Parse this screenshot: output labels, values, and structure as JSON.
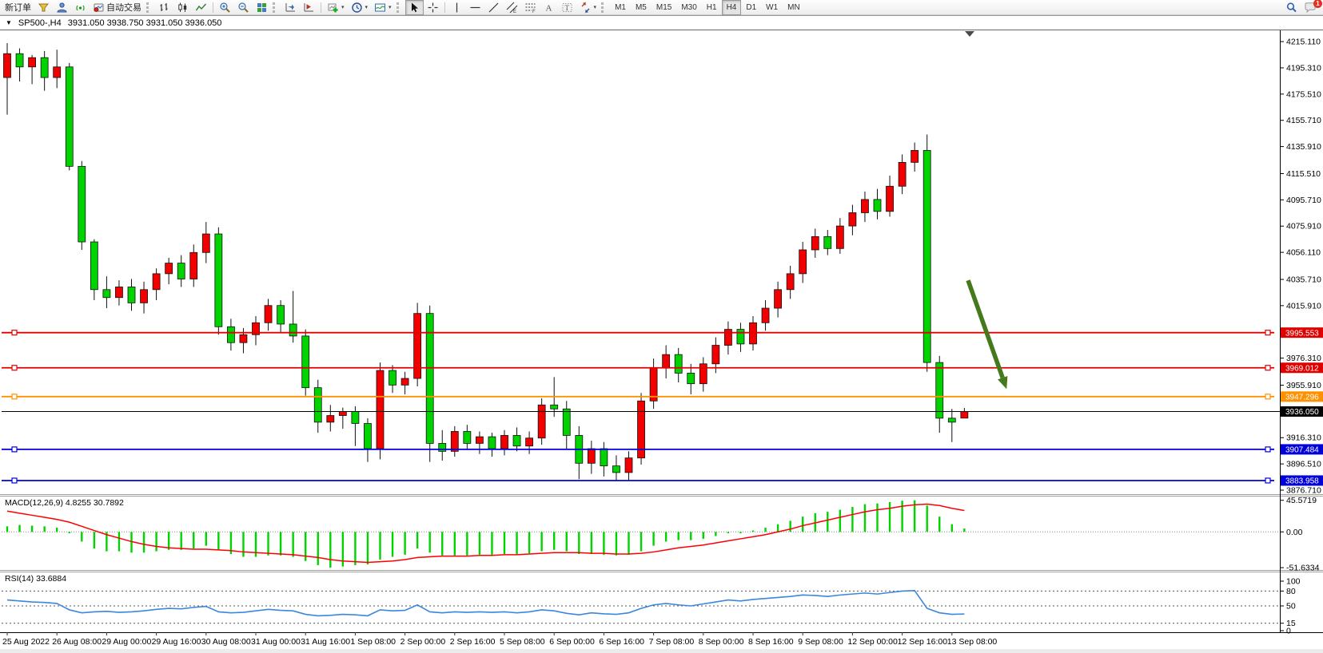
{
  "toolbar": {
    "new_order": "新订单",
    "auto_trading": "自动交易",
    "timeframes": [
      "M1",
      "M5",
      "M15",
      "M30",
      "H1",
      "H4",
      "D1",
      "W1",
      "MN"
    ],
    "active_timeframe": "H4",
    "notification_badge": "1"
  },
  "chart_title": {
    "symbol_period": "SP500-,H4",
    "ohlc": "3931.050 3938.750 3931.050 3936.050"
  },
  "chart_data": [
    {
      "type": "candlestick",
      "symbol": "SP500-",
      "period": "H4",
      "up_color": "#f20000",
      "down_color": "#00d300",
      "price_range": [
        3873.7,
        4223.6
      ],
      "price_ticks": [
        "4215.110",
        "4195.310",
        "4175.510",
        "4155.710",
        "4135.910",
        "4115.510",
        "4095.710",
        "4075.910",
        "4056.110",
        "4035.710",
        "4015.910",
        "3976.310",
        "3955.910",
        "3916.310",
        "3896.510",
        "3876.710"
      ],
      "x_labels": [
        "25 Aug 2022",
        "26 Aug 08:00",
        "29 Aug 00:00",
        "29 Aug 16:00",
        "30 Aug 08:00",
        "31 Aug 00:00",
        "31 Aug 16:00",
        "1 Sep 08:00",
        "2 Sep 00:00",
        "2 Sep 16:00",
        "5 Sep 08:00",
        "6 Sep 00:00",
        "6 Sep 16:00",
        "7 Sep 08:00",
        "8 Sep 00:00",
        "8 Sep 16:00",
        "9 Sep 08:00",
        "12 Sep 00:00",
        "12 Sep 16:00",
        "13 Sep 08:00"
      ],
      "x_label_every": 4,
      "candles": [
        [
          4188,
          4214,
          4160,
          4206
        ],
        [
          4206,
          4210,
          4185,
          4196
        ],
        [
          4196,
          4205,
          4183,
          4203
        ],
        [
          4203,
          4208,
          4178,
          4188
        ],
        [
          4188,
          4209,
          4180,
          4196
        ],
        [
          4196,
          4199,
          4118,
          4121
        ],
        [
          4121,
          4125,
          4058,
          4064
        ],
        [
          4064,
          4066,
          4020,
          4028
        ],
        [
          4028,
          4038,
          4014,
          4022
        ],
        [
          4022,
          4035,
          4016,
          4030
        ],
        [
          4030,
          4036,
          4012,
          4018
        ],
        [
          4018,
          4034,
          4010,
          4028
        ],
        [
          4028,
          4044,
          4020,
          4040
        ],
        [
          4040,
          4052,
          4032,
          4048
        ],
        [
          4048,
          4054,
          4030,
          4036
        ],
        [
          4036,
          4062,
          4030,
          4056
        ],
        [
          4056,
          4079,
          4048,
          4070
        ],
        [
          4070,
          4075,
          3994,
          4000
        ],
        [
          4000,
          4006,
          3982,
          3988
        ],
        [
          3988,
          3999,
          3980,
          3994
        ],
        [
          3994,
          4008,
          3986,
          4003
        ],
        [
          4003,
          4021,
          3997,
          4016
        ],
        [
          4016,
          4020,
          3996,
          4002
        ],
        [
          4002,
          4027,
          3988,
          3993
        ],
        [
          3993,
          3998,
          3948,
          3954
        ],
        [
          3954,
          3960,
          3920,
          3928
        ],
        [
          3928,
          3941,
          3921,
          3933
        ],
        [
          3933,
          3939,
          3923,
          3936
        ],
        [
          3936,
          3940,
          3910,
          3927
        ],
        [
          3927,
          3931,
          3898,
          3908
        ],
        [
          3908,
          3973,
          3900,
          3967
        ],
        [
          3967,
          3971,
          3950,
          3956
        ],
        [
          3956,
          3966,
          3949,
          3961
        ],
        [
          3961,
          4018,
          3955,
          4010
        ],
        [
          4010,
          4016,
          3898,
          3912
        ],
        [
          3912,
          3922,
          3899,
          3906
        ],
        [
          3906,
          3925,
          3902,
          3921
        ],
        [
          3921,
          3926,
          3907,
          3912
        ],
        [
          3912,
          3921,
          3904,
          3917
        ],
        [
          3917,
          3920,
          3902,
          3908
        ],
        [
          3908,
          3922,
          3903,
          3918
        ],
        [
          3918,
          3924,
          3906,
          3910
        ],
        [
          3910,
          3921,
          3904,
          3916
        ],
        [
          3916,
          3946,
          3911,
          3941
        ],
        [
          3941,
          3962,
          3932,
          3938
        ],
        [
          3938,
          3944,
          3908,
          3918
        ],
        [
          3918,
          3925,
          3885,
          3897
        ],
        [
          3897,
          3914,
          3889,
          3908
        ],
        [
          3908,
          3913,
          3887,
          3895
        ],
        [
          3895,
          3903,
          3884,
          3890
        ],
        [
          3890,
          3906,
          3884,
          3901
        ],
        [
          3901,
          3950,
          3896,
          3944
        ],
        [
          3944,
          3976,
          3938,
          3969
        ],
        [
          3969,
          3986,
          3961,
          3979
        ],
        [
          3979,
          3984,
          3958,
          3965
        ],
        [
          3965,
          3972,
          3949,
          3957
        ],
        [
          3957,
          3977,
          3951,
          3972
        ],
        [
          3972,
          3992,
          3965,
          3986
        ],
        [
          3986,
          4004,
          3979,
          3998
        ],
        [
          3998,
          4003,
          3981,
          3987
        ],
        [
          3987,
          4008,
          3982,
          4003
        ],
        [
          4003,
          4020,
          3997,
          4014
        ],
        [
          4014,
          4034,
          4007,
          4028
        ],
        [
          4028,
          4046,
          4021,
          4040
        ],
        [
          4040,
          4064,
          4033,
          4058
        ],
        [
          4058,
          4074,
          4052,
          4068
        ],
        [
          4068,
          4073,
          4054,
          4059
        ],
        [
          4059,
          4082,
          4055,
          4076
        ],
        [
          4076,
          4092,
          4069,
          4086
        ],
        [
          4086,
          4102,
          4079,
          4096
        ],
        [
          4096,
          4104,
          4081,
          4087
        ],
        [
          4087,
          4114,
          4083,
          4106
        ],
        [
          4106,
          4130,
          4100,
          4124
        ],
        [
          4124,
          4139,
          4117,
          4133
        ],
        [
          4133,
          4145,
          3966,
          3973
        ],
        [
          3973,
          3978,
          3920,
          3931
        ],
        [
          3931,
          3938,
          3913,
          3928
        ],
        [
          3931.05,
          3938.75,
          3931.05,
          3936.05
        ]
      ],
      "hlines": [
        {
          "value": 3995.553,
          "label": "3995.553",
          "color": "#e00000",
          "selected": true
        },
        {
          "value": 3969.012,
          "label": "3969.012",
          "color": "#e00000",
          "selected": true
        },
        {
          "value": 3947.296,
          "label": "3947.296",
          "color": "#ff9000",
          "selected": true
        },
        {
          "value": 3907.484,
          "label": "3907.484",
          "color": "#0000d8",
          "selected": true
        },
        {
          "value": 3883.958,
          "label": "3883.958",
          "color": "#0000d8",
          "selected": true
        }
      ],
      "bid": {
        "price": 3936.05,
        "label": "3936.050",
        "color": "#000000"
      },
      "arrow": {
        "from": {
          "bar": 77.3,
          "price": 4035
        },
        "to": {
          "bar": 80.4,
          "price": 3953
        },
        "color": "#44791c"
      }
    },
    {
      "type": "macd_histogram",
      "name": "MACD(12,26,9)",
      "display_values": "4.8255 30.7892",
      "ticks": [
        "45.5719",
        "0.00",
        "-51.6334"
      ],
      "ylim": [
        -55,
        51
      ],
      "histogram_color": "#00d300",
      "signal_color": "#ff0000",
      "histogram": [
        8,
        10,
        9,
        8,
        6,
        -2,
        -14,
        -24,
        -28,
        -28,
        -30,
        -30,
        -28,
        -26,
        -26,
        -24,
        -20,
        -26,
        -32,
        -36,
        -36,
        -34,
        -34,
        -36,
        -42,
        -48,
        -51.6334,
        -50,
        -48,
        -47,
        -40,
        -36,
        -33,
        -24,
        -30,
        -34,
        -34,
        -34,
        -33,
        -33,
        -32,
        -32,
        -31,
        -28,
        -26,
        -28,
        -32,
        -32,
        -33,
        -34,
        -33,
        -28,
        -20,
        -14,
        -12,
        -12,
        -10,
        -6,
        -2,
        -2,
        2,
        6,
        11,
        16,
        22,
        27,
        29,
        32,
        36,
        40,
        41,
        43,
        45,
        45.5719,
        38,
        22,
        11,
        4.8255
      ],
      "signal": [
        30,
        27,
        24,
        21,
        18,
        14,
        8,
        2,
        -4,
        -9,
        -14,
        -18,
        -21,
        -23,
        -24,
        -25,
        -25,
        -26,
        -27,
        -29,
        -30,
        -31,
        -32,
        -33,
        -35,
        -37,
        -40,
        -42,
        -43,
        -44,
        -43,
        -42,
        -40,
        -37,
        -36,
        -35,
        -35,
        -35,
        -34,
        -34,
        -33,
        -33,
        -32,
        -31,
        -30,
        -30,
        -30,
        -31,
        -31,
        -32,
        -32,
        -31,
        -29,
        -26,
        -23,
        -21,
        -19,
        -16,
        -13,
        -10,
        -7,
        -4,
        0,
        4,
        9,
        13,
        17,
        21,
        25,
        29,
        32,
        34,
        37,
        39,
        40,
        38,
        34,
        30.7892
      ]
    },
    {
      "type": "line",
      "name": "RSI(14)",
      "display_values": "33.6884",
      "ticks": [
        "100",
        "80",
        "50",
        "15",
        "0"
      ],
      "levels": [
        80,
        50,
        15
      ],
      "ylim": [
        0,
        100
      ],
      "line_color": "#3b87dd",
      "values": [
        62,
        60,
        58,
        57,
        55,
        42,
        36,
        38,
        39,
        37,
        38,
        40,
        43,
        45,
        44,
        47,
        49,
        38,
        36,
        37,
        40,
        43,
        41,
        40,
        33,
        30,
        31,
        33,
        32,
        30,
        42,
        40,
        41,
        52,
        38,
        36,
        38,
        37,
        38,
        37,
        38,
        36,
        38,
        42,
        40,
        35,
        32,
        36,
        34,
        33,
        36,
        45,
        52,
        55,
        52,
        50,
        54,
        58,
        62,
        60,
        63,
        65,
        67,
        69,
        72,
        71,
        69,
        72,
        74,
        76,
        74,
        77,
        80,
        81,
        45,
        36,
        33,
        33.6884
      ]
    }
  ]
}
